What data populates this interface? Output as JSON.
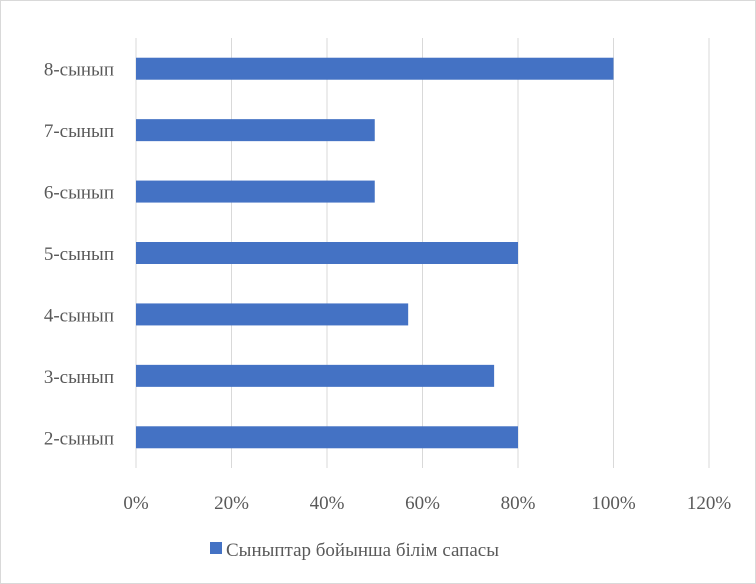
{
  "chart_data": {
    "type": "bar",
    "orientation": "horizontal",
    "categories": [
      "2-сынып",
      "3-сынып",
      "4-сынып",
      "5-сынып",
      "6-сынып",
      "7-сынып",
      "8-сынып"
    ],
    "series": [
      {
        "name": "Сыныптар бойынша білім  сапасы",
        "values": [
          80,
          75,
          57,
          80,
          50,
          50,
          100
        ],
        "color": "#4472c4"
      }
    ],
    "xlim": [
      0,
      120
    ],
    "xticks": [
      "0%",
      "20%",
      "40%",
      "60%",
      "80%",
      "100%",
      "120%"
    ],
    "grid": true,
    "legend": "bottom"
  }
}
